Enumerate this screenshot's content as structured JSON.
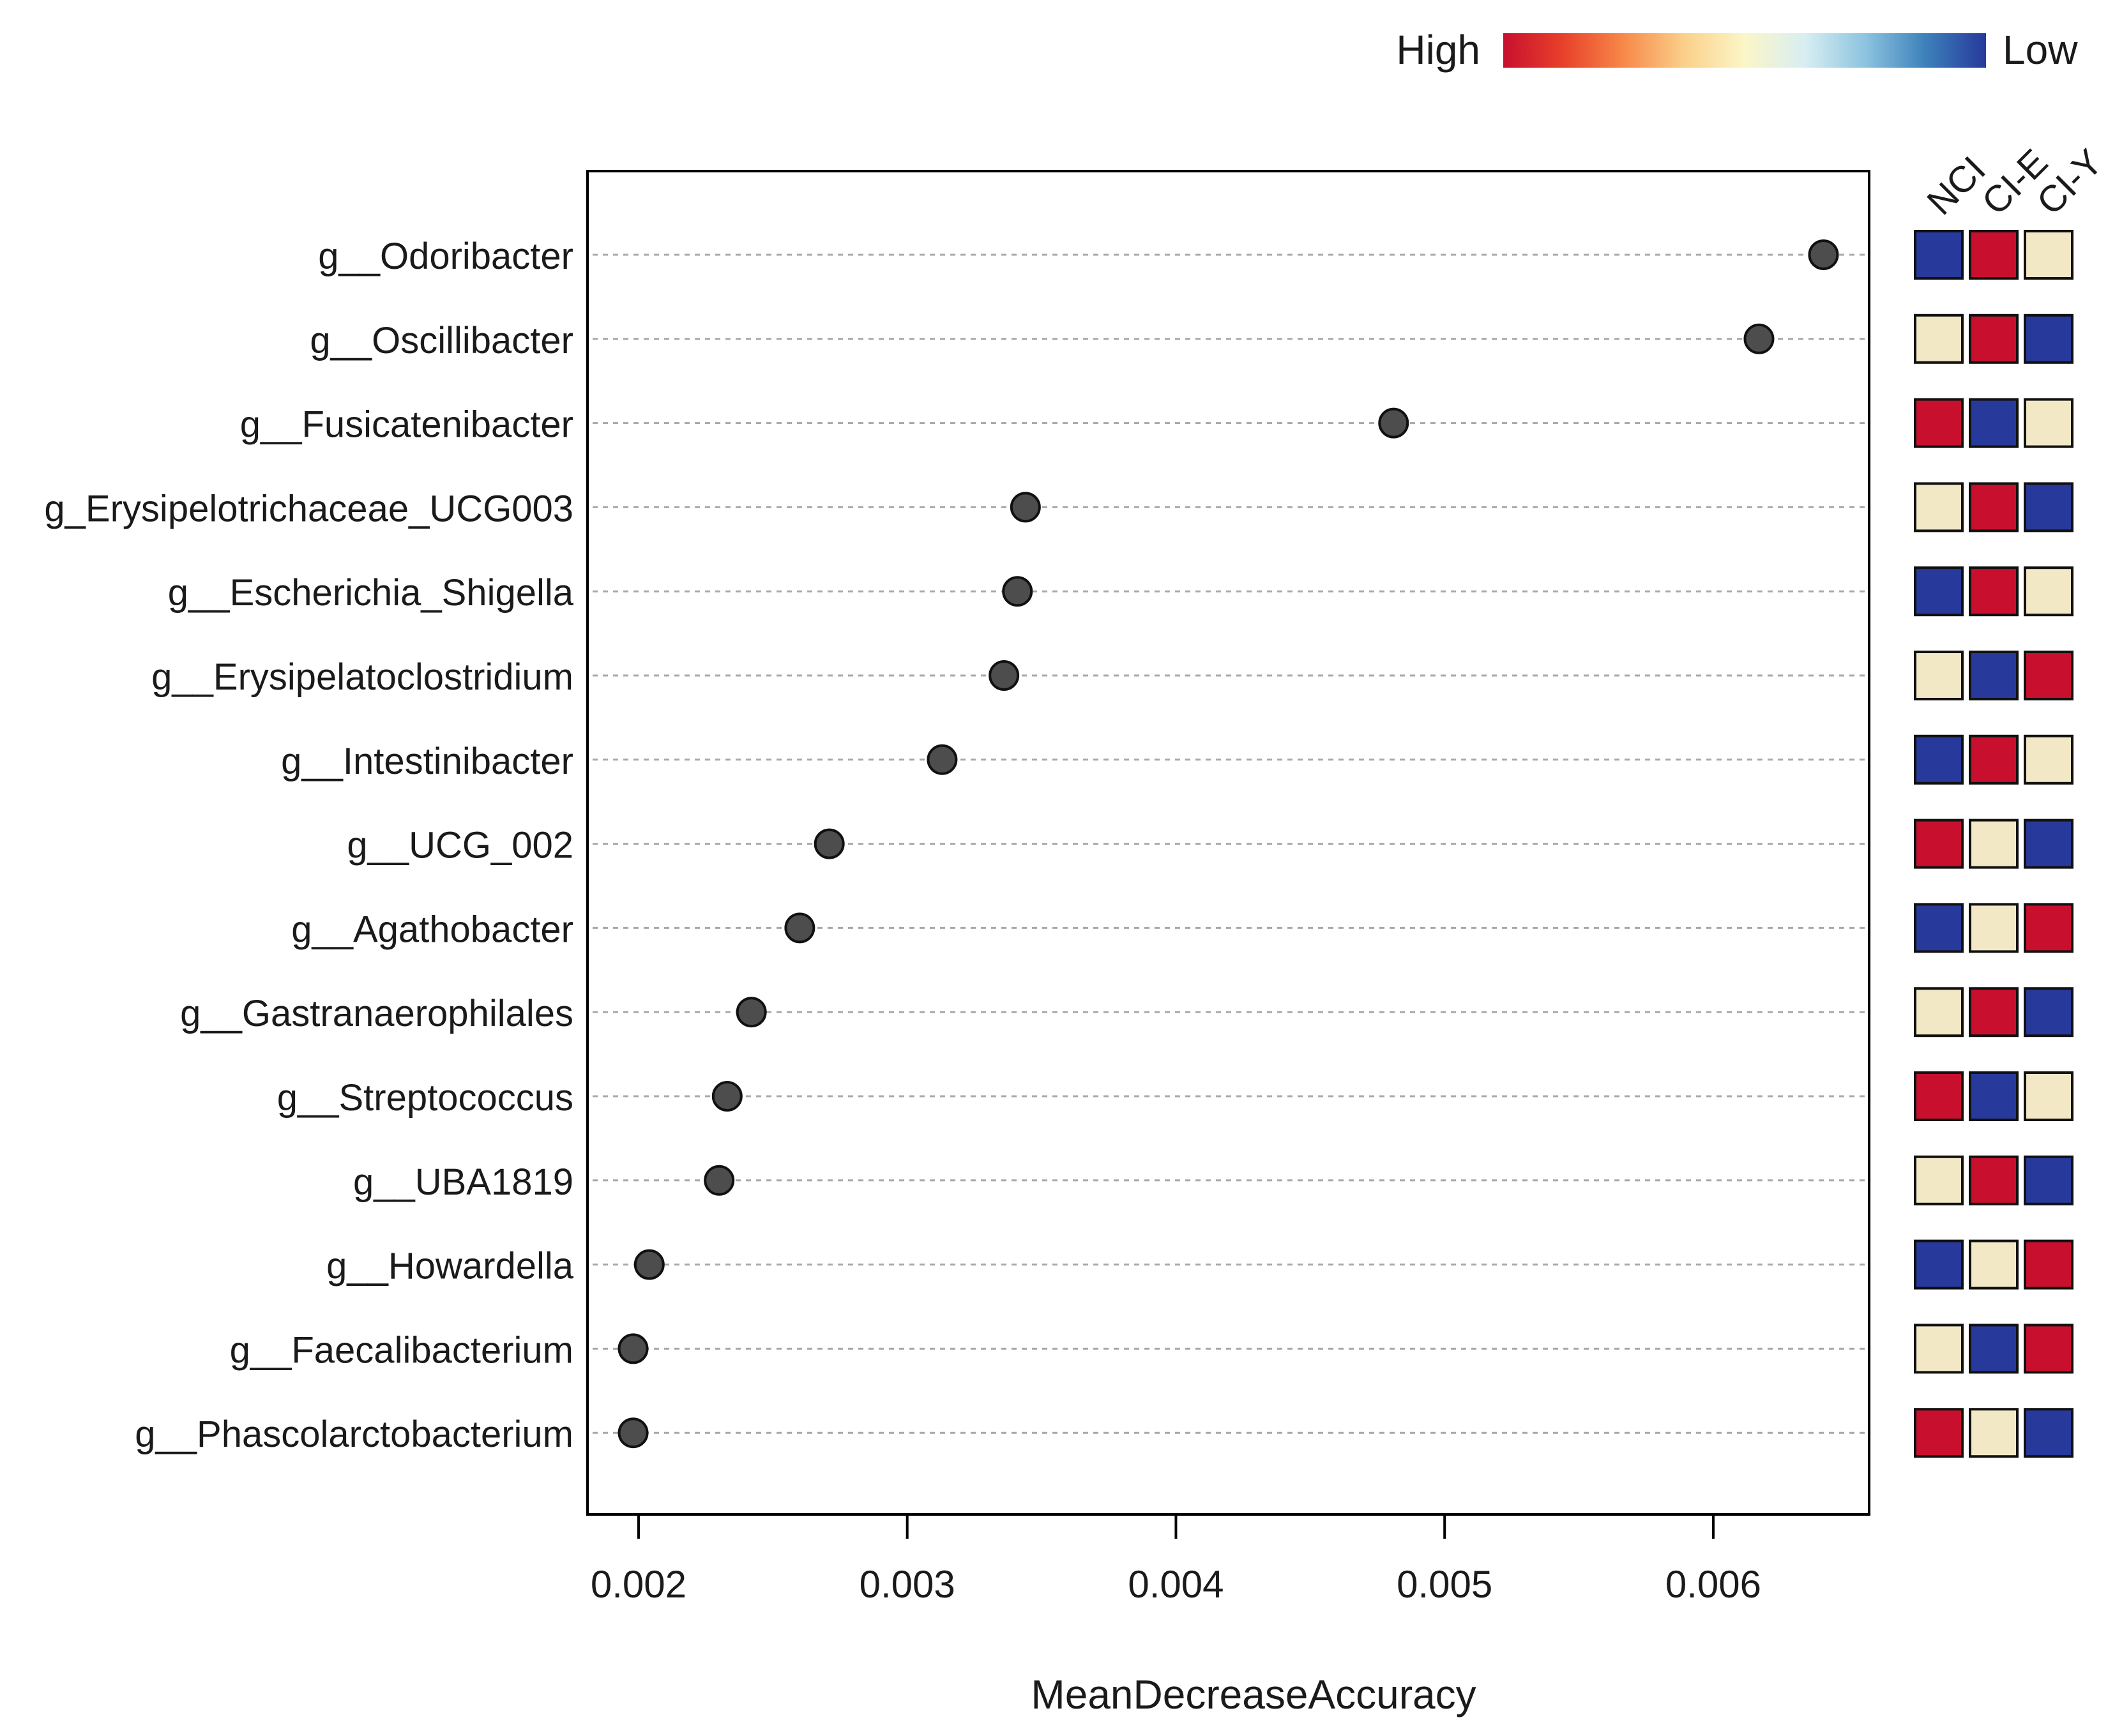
{
  "chart_data": {
    "type": "scatter",
    "subtype": "dot-plot",
    "xlabel": "MeanDecreaseAccuracy",
    "xlim": [
      0.00181,
      0.00658
    ],
    "xticks": [
      "0.002",
      "0.003",
      "0.004",
      "0.005",
      "0.006"
    ],
    "xtick_values": [
      0.002,
      0.003,
      0.004,
      0.005,
      0.006
    ],
    "categories": [
      "g__Odoribacter",
      "g__Oscillibacter",
      "g__Fusicatenibacter",
      "g_Erysipelotrichaceae_UCG003",
      "g__Escherichia_Shigella",
      "g__Erysipelatoclostridium",
      "g__Intestinibacter",
      "g__UCG_002",
      "g__Agathobacter",
      "g__Gastranaerophilales",
      "g__Streptococcus",
      "g__UBA1819",
      "g__Howardella",
      "g__Faecalibacterium",
      "g__Phascolarctobacterium"
    ],
    "values": [
      0.00641,
      0.00617,
      0.00481,
      0.00344,
      0.00341,
      0.00336,
      0.00313,
      0.00271,
      0.0026,
      0.00242,
      0.00233,
      0.0023,
      0.00204,
      0.00198,
      0.00198
    ],
    "heatmap": {
      "groups": [
        "NCI",
        "CI-E",
        "CI-Y"
      ],
      "levels": [
        [
          "low",
          "high",
          "mid"
        ],
        [
          "mid",
          "high",
          "low"
        ],
        [
          "high",
          "low",
          "mid"
        ],
        [
          "mid",
          "high",
          "low"
        ],
        [
          "low",
          "high",
          "mid"
        ],
        [
          "mid",
          "low",
          "high"
        ],
        [
          "low",
          "high",
          "mid"
        ],
        [
          "high",
          "mid",
          "low"
        ],
        [
          "low",
          "mid",
          "high"
        ],
        [
          "mid",
          "high",
          "low"
        ],
        [
          "high",
          "low",
          "mid"
        ],
        [
          "mid",
          "high",
          "low"
        ],
        [
          "low",
          "mid",
          "high"
        ],
        [
          "mid",
          "low",
          "high"
        ],
        [
          "high",
          "mid",
          "low"
        ]
      ]
    },
    "legend": {
      "high_label": "High",
      "low_label": "Low",
      "position": "top-right"
    }
  },
  "colors": {
    "high": "#c8102e",
    "mid": "#f2e8c6",
    "low": "#27399b",
    "point": "#4d4d4d",
    "gridline": "#a8a8a8",
    "gradient": [
      "#c8102e",
      "#e8412a",
      "#f7894a",
      "#fbd08a",
      "#fbf6c8",
      "#d8eef2",
      "#8cc4df",
      "#3d81bb",
      "#27399b"
    ]
  }
}
